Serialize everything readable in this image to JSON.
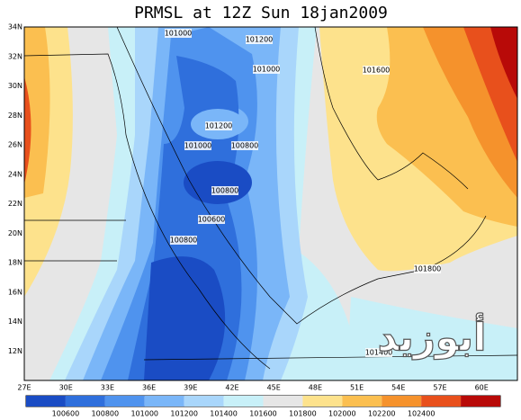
{
  "title": "PRMSL at 12Z Sun 18jan2009",
  "lat_labels": [
    "34N",
    "32N",
    "30N",
    "28N",
    "26N",
    "24N",
    "22N",
    "20N",
    "18N",
    "16N",
    "14N",
    "12N"
  ],
  "lon_labels": [
    "27E",
    "30E",
    "33E",
    "36E",
    "39E",
    "42E",
    "45E",
    "48E",
    "51E",
    "54E",
    "57E",
    "60E"
  ],
  "contour_labels": [
    "101000",
    "101200",
    "101000",
    "101600",
    "101200",
    "101000",
    "100800",
    "100800",
    "100600",
    "100800",
    "101800",
    "101400"
  ],
  "colorbar": {
    "colors": [
      "#1a4cc4",
      "#2f6fdc",
      "#4f93ee",
      "#7ab6f8",
      "#a9d6fb",
      "#c8f0f8",
      "#e6e6e6",
      "#fde28c",
      "#fbbf50",
      "#f5922c",
      "#e8501c",
      "#b80a08"
    ],
    "labels": [
      "100600",
      "100800",
      "101000",
      "101200",
      "101400",
      "101600",
      "101800",
      "102000",
      "102200",
      "102400"
    ]
  },
  "watermark": "أبوزيد"
}
